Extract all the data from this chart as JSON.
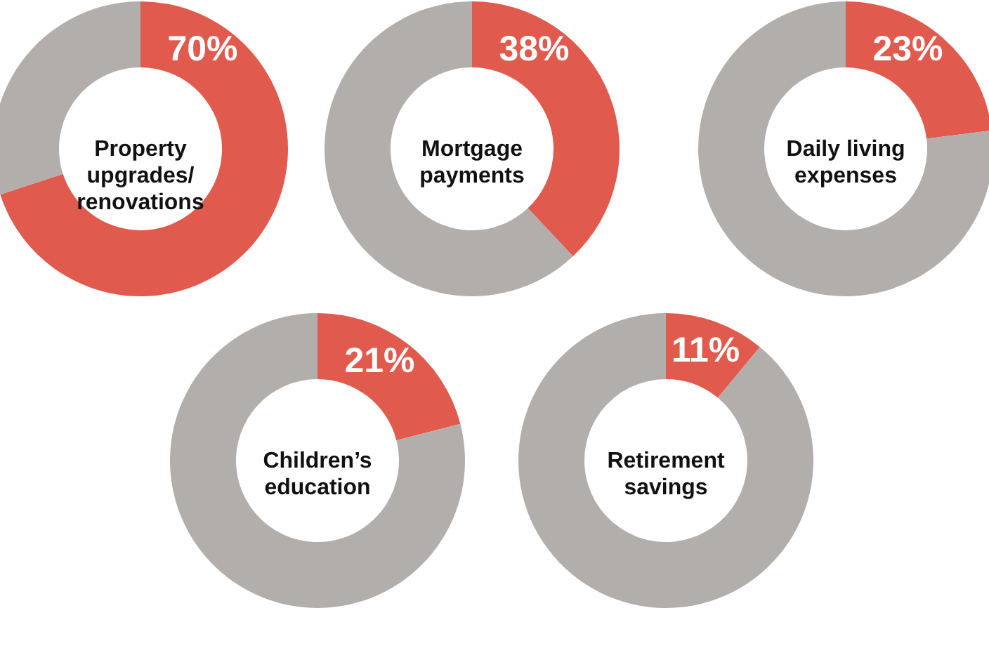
{
  "chart_data": [
    {
      "type": "donut",
      "title": "Property upgrades/ renovations",
      "categories": [
        null,
        null
      ],
      "values": [
        70,
        30
      ],
      "colors": [
        "#e05a4e",
        "#b2aeab"
      ],
      "value_labels": [
        "70%",
        null
      ]
    },
    {
      "type": "donut",
      "title": "Mortgage payments",
      "categories": [
        null,
        null
      ],
      "values": [
        38,
        62
      ],
      "colors": [
        "#e05a4e",
        "#b2aeab"
      ],
      "value_labels": [
        "38%",
        null
      ]
    },
    {
      "type": "donut",
      "title": "Daily living expenses",
      "categories": [
        null,
        null
      ],
      "values": [
        23,
        77
      ],
      "colors": [
        "#e05a4e",
        "#b2aeab"
      ],
      "value_labels": [
        "23%",
        null
      ]
    },
    {
      "type": "donut",
      "title": "Children’s education",
      "categories": [
        null,
        null
      ],
      "values": [
        21,
        79
      ],
      "colors": [
        "#e05a4e",
        "#b2aeab"
      ],
      "value_labels": [
        "21%",
        null
      ]
    },
    {
      "type": "donut",
      "title": "Retirement savings",
      "categories": [
        null,
        null
      ],
      "values": [
        11,
        89
      ],
      "colors": [
        "#e05a4e",
        "#b2aeab"
      ],
      "value_labels": [
        "11%",
        null
      ]
    }
  ]
}
